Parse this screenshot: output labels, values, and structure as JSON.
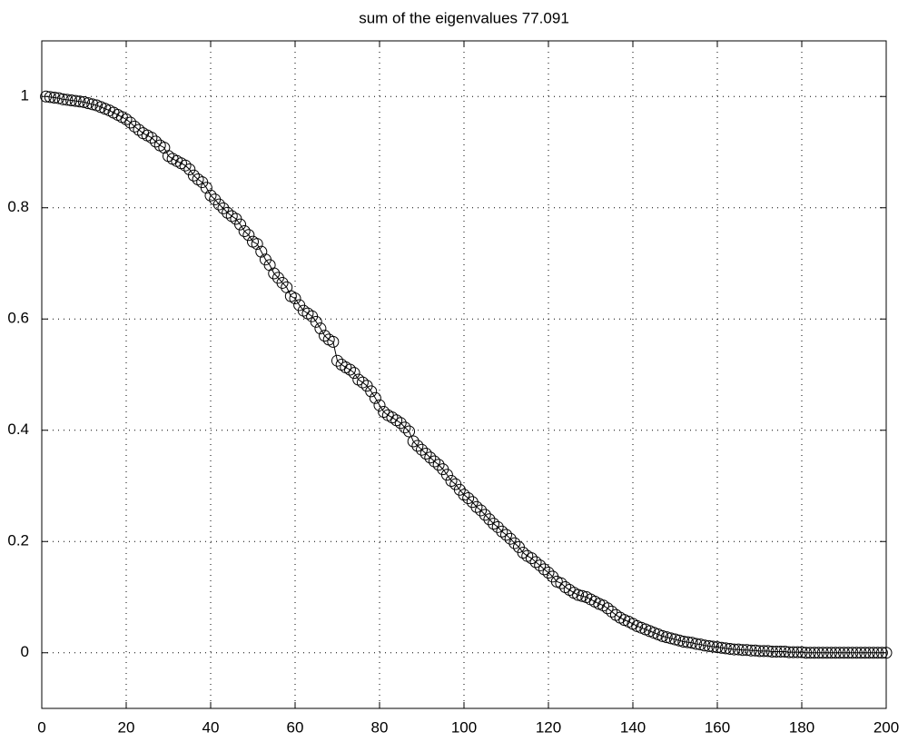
{
  "chart_data": {
    "type": "line",
    "title": "sum of the eigenvalues   77.091",
    "x": [
      1,
      2,
      3,
      4,
      5,
      6,
      7,
      8,
      9,
      10,
      11,
      12,
      13,
      14,
      15,
      16,
      17,
      18,
      19,
      20,
      21,
      22,
      23,
      24,
      25,
      26,
      27,
      28,
      29,
      30,
      31,
      32,
      33,
      34,
      35,
      36,
      37,
      38,
      39,
      40,
      41,
      42,
      43,
      44,
      45,
      46,
      47,
      48,
      49,
      50,
      51,
      52,
      53,
      54,
      55,
      56,
      57,
      58,
      59,
      60,
      61,
      62,
      63,
      64,
      65,
      66,
      67,
      68,
      69,
      70,
      71,
      72,
      73,
      74,
      75,
      76,
      77,
      78,
      79,
      80,
      81,
      82,
      83,
      84,
      85,
      86,
      87,
      88,
      89,
      90,
      91,
      92,
      93,
      94,
      95,
      96,
      97,
      98,
      99,
      100,
      101,
      102,
      103,
      104,
      105,
      106,
      107,
      108,
      109,
      110,
      111,
      112,
      113,
      114,
      115,
      116,
      117,
      118,
      119,
      120,
      121,
      122,
      123,
      124,
      125,
      126,
      127,
      128,
      129,
      130,
      131,
      132,
      133,
      134,
      135,
      136,
      137,
      138,
      139,
      140,
      141,
      142,
      143,
      144,
      145,
      146,
      147,
      148,
      149,
      150,
      151,
      152,
      153,
      154,
      155,
      156,
      157,
      158,
      159,
      160,
      161,
      162,
      163,
      164,
      165,
      166,
      167,
      168,
      169,
      170,
      171,
      172,
      173,
      174,
      175,
      176,
      177,
      178,
      179,
      180,
      181,
      182,
      183,
      184,
      185,
      186,
      187,
      188,
      189,
      190,
      191,
      192,
      193,
      194,
      195,
      196,
      197,
      198,
      199,
      200
    ],
    "values": [
      1.0,
      0.999,
      0.998,
      0.997,
      0.995,
      0.994,
      0.993,
      0.992,
      0.991,
      0.99,
      0.988,
      0.986,
      0.984,
      0.981,
      0.978,
      0.975,
      0.971,
      0.967,
      0.963,
      0.959,
      0.953,
      0.946,
      0.94,
      0.934,
      0.93,
      0.926,
      0.919,
      0.912,
      0.908,
      0.893,
      0.888,
      0.884,
      0.88,
      0.876,
      0.869,
      0.858,
      0.851,
      0.846,
      0.836,
      0.822,
      0.815,
      0.806,
      0.799,
      0.791,
      0.785,
      0.78,
      0.77,
      0.758,
      0.751,
      0.739,
      0.735,
      0.721,
      0.707,
      0.697,
      0.682,
      0.674,
      0.665,
      0.657,
      0.641,
      0.637,
      0.625,
      0.615,
      0.61,
      0.605,
      0.595,
      0.583,
      0.57,
      0.563,
      0.559,
      0.525,
      0.518,
      0.513,
      0.509,
      0.503,
      0.491,
      0.486,
      0.48,
      0.47,
      0.458,
      0.445,
      0.433,
      0.427,
      0.423,
      0.418,
      0.413,
      0.405,
      0.398,
      0.38,
      0.372,
      0.365,
      0.358,
      0.351,
      0.344,
      0.338,
      0.33,
      0.32,
      0.309,
      0.303,
      0.293,
      0.284,
      0.278,
      0.271,
      0.262,
      0.256,
      0.248,
      0.24,
      0.232,
      0.226,
      0.218,
      0.212,
      0.205,
      0.197,
      0.19,
      0.18,
      0.174,
      0.17,
      0.163,
      0.157,
      0.15,
      0.144,
      0.137,
      0.128,
      0.125,
      0.118,
      0.113,
      0.108,
      0.104,
      0.102,
      0.1,
      0.096,
      0.092,
      0.088,
      0.085,
      0.08,
      0.074,
      0.068,
      0.063,
      0.059,
      0.056,
      0.052,
      0.048,
      0.045,
      0.042,
      0.039,
      0.036,
      0.033,
      0.03,
      0.028,
      0.026,
      0.024,
      0.022,
      0.02,
      0.019,
      0.018,
      0.016,
      0.015,
      0.013,
      0.012,
      0.011,
      0.01,
      0.009,
      0.008,
      0.007,
      0.006,
      0.006,
      0.005,
      0.005,
      0.004,
      0.004,
      0.003,
      0.003,
      0.003,
      0.002,
      0.002,
      0.002,
      0.002,
      0.001,
      0.001,
      0.001,
      0.001,
      0,
      0,
      0,
      0,
      0,
      0,
      0,
      0,
      0,
      0,
      0,
      0,
      0,
      0,
      0,
      0,
      0,
      0,
      0,
      0
    ],
    "color": "#000000",
    "xlim": [
      0,
      200
    ],
    "xticks": [
      0,
      20,
      40,
      60,
      80,
      100,
      120,
      140,
      160,
      180,
      200
    ],
    "ylim": [
      -0.1,
      1.1
    ],
    "yticks": [
      0,
      0.2,
      0.4,
      0.6,
      0.8,
      1
    ],
    "grid": true
  }
}
